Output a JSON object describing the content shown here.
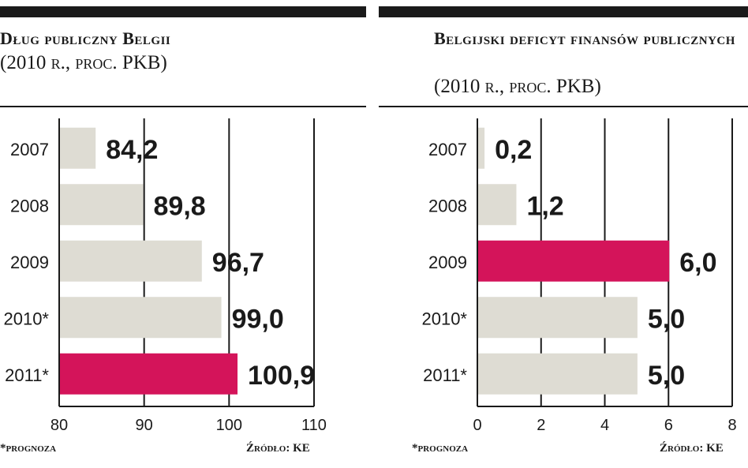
{
  "colors": {
    "bar": "#dedcd3",
    "highlight": "#d4145a",
    "ink": "#1a1a1a"
  },
  "chart_data": [
    {
      "type": "bar",
      "orientation": "horizontal",
      "title": "Dług publiczny Belgii",
      "subtitle": "(2010 r., proc. PKB)",
      "categories": [
        "2007",
        "2008",
        "2009",
        "2010*",
        "2011*"
      ],
      "values": [
        84.2,
        89.8,
        96.7,
        99.0,
        100.9
      ],
      "value_labels": [
        "84,2",
        "89,8",
        "96,7",
        "99,0",
        "100,9"
      ],
      "highlight_index": 4,
      "xlim": [
        80,
        110
      ],
      "xticks": [
        "80",
        "90",
        "100",
        "110"
      ],
      "footnote": "*prognoza",
      "source": "Źródło: KE"
    },
    {
      "type": "bar",
      "orientation": "horizontal",
      "title": "Belgijski deficyt finansów publicznych",
      "subtitle": "(2010 r., proc. PKB)",
      "categories": [
        "2007",
        "2008",
        "2009",
        "2010*",
        "2011*"
      ],
      "values": [
        0.2,
        1.2,
        6.0,
        5.0,
        5.0
      ],
      "value_labels": [
        "0,2",
        "1,2",
        "6,0",
        "5,0",
        "5,0"
      ],
      "highlight_index": 2,
      "xlim": [
        0,
        8
      ],
      "xticks": [
        "0",
        "2",
        "4",
        "6",
        "8"
      ],
      "footnote": "*prognoza",
      "source": "Źródło: KE"
    }
  ]
}
